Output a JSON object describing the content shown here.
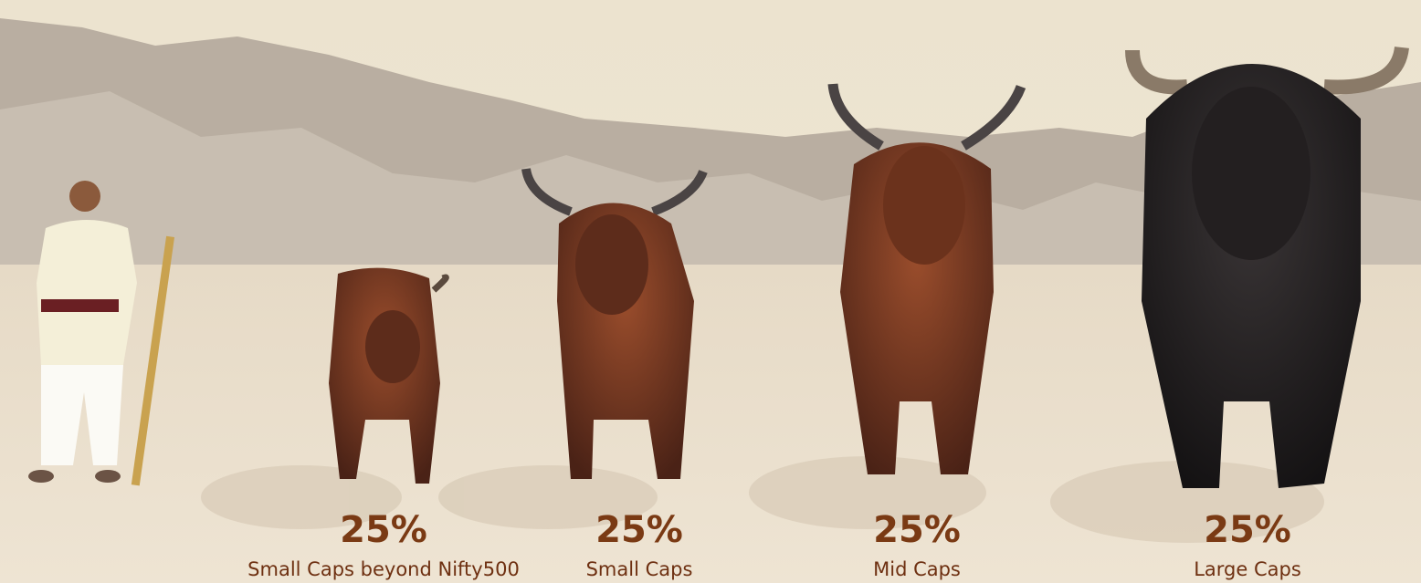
{
  "items": [
    {
      "percent": "25%",
      "label": "Small Caps beyond Nifty500"
    },
    {
      "percent": "25%",
      "label": "Small Caps"
    },
    {
      "percent": "25%",
      "label": "Mid Caps"
    },
    {
      "percent": "25%",
      "label": "Large Caps"
    }
  ]
}
